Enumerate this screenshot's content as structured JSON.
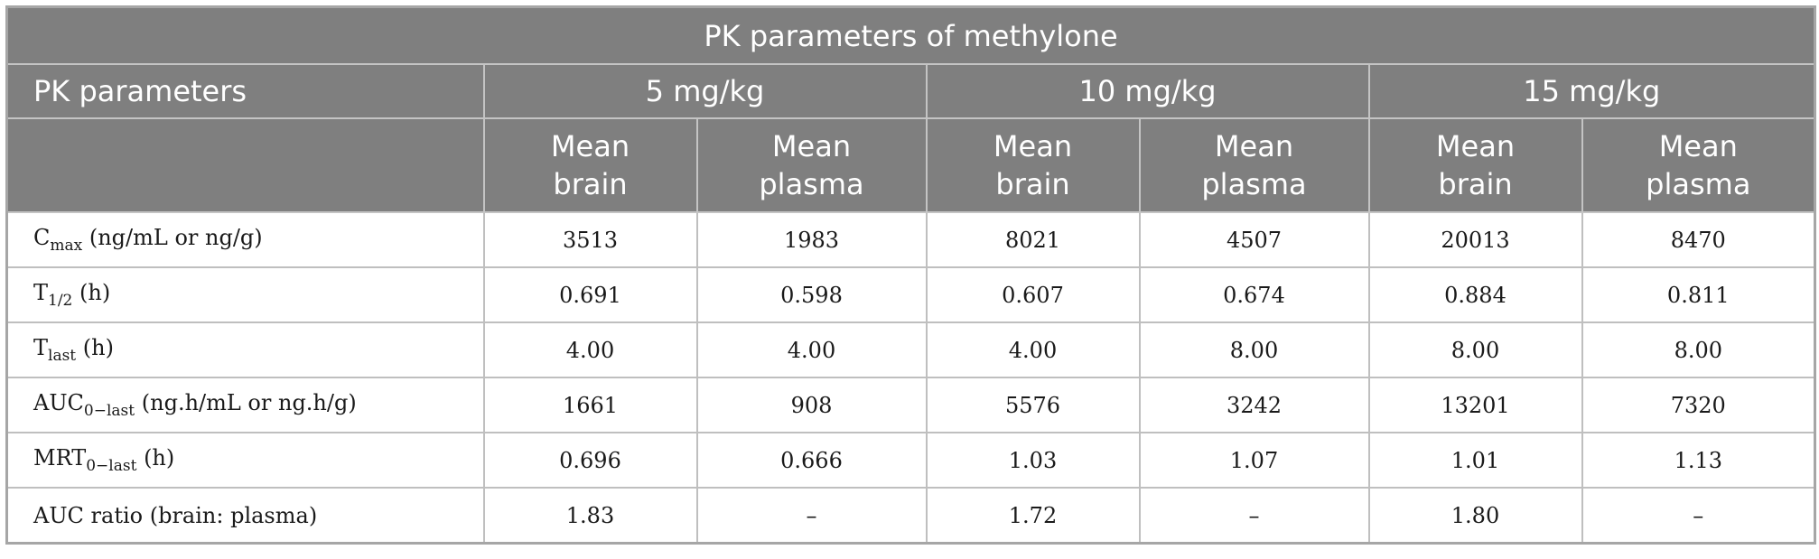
{
  "table": {
    "title": "PK parameters of methylone",
    "param_header": "PK parameters",
    "doses": [
      "5 mg/kg",
      "10 mg/kg",
      "15 mg/kg"
    ],
    "subheaders": [
      {
        "line1": "Mean",
        "line2": "brain"
      },
      {
        "line1": "Mean",
        "line2": "plasma"
      },
      {
        "line1": "Mean",
        "line2": "brain"
      },
      {
        "line1": "Mean",
        "line2": "plasma"
      },
      {
        "line1": "Mean",
        "line2": "brain"
      },
      {
        "line1": "Mean",
        "line2": "plasma"
      }
    ],
    "rows": [
      {
        "param": {
          "main": "C",
          "sub": "max",
          "unit": " (ng/mL or ng/g)"
        },
        "values": [
          "3513",
          "1983",
          "8021",
          "4507",
          "20013",
          "8470"
        ]
      },
      {
        "param": {
          "main": "T",
          "sub": "1/2",
          "unit": " (h)"
        },
        "values": [
          "0.691",
          "0.598",
          "0.607",
          "0.674",
          "0.884",
          "0.811"
        ]
      },
      {
        "param": {
          "main": "T",
          "sub": "last",
          "unit": " (h)"
        },
        "values": [
          "4.00",
          "4.00",
          "4.00",
          "8.00",
          "8.00",
          "8.00"
        ]
      },
      {
        "param": {
          "main": "AUC",
          "sub": "0−last",
          "unit": " (ng.h/mL or ng.h/g)"
        },
        "values": [
          "1661",
          "908",
          "5576",
          "3242",
          "13201",
          "7320"
        ]
      },
      {
        "param": {
          "main": "MRT",
          "sub": "0−last",
          "unit": " (h)"
        },
        "values": [
          "0.696",
          "0.666",
          "1.03",
          "1.07",
          "1.01",
          "1.13"
        ]
      },
      {
        "param": {
          "main": "AUC ratio (brain: plasma)",
          "sub": "",
          "unit": ""
        },
        "values": [
          "1.83",
          "–",
          "1.72",
          "–",
          "1.80",
          "–"
        ]
      }
    ]
  }
}
